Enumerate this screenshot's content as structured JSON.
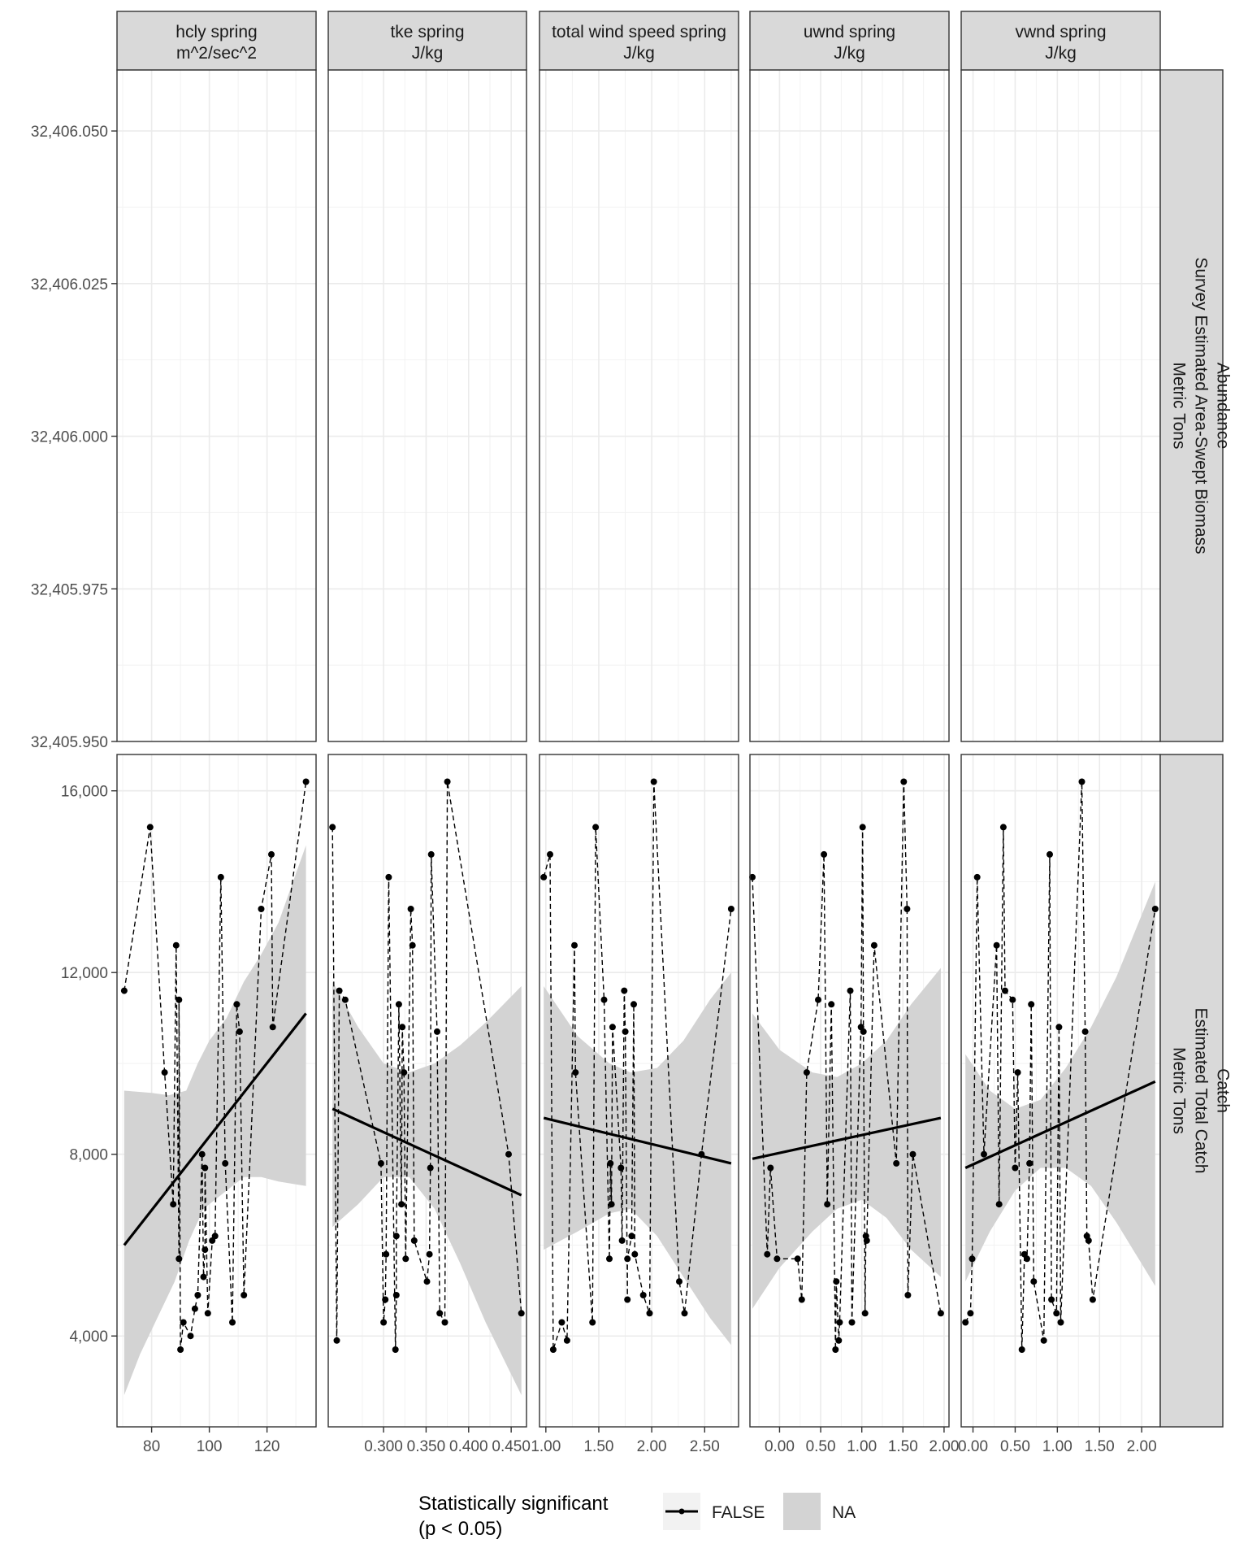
{
  "chart_data": {
    "type": "scatter",
    "facet_columns": [
      {
        "line1": "hcly spring",
        "line2": "m^2/sec^2",
        "xlim": [
          68,
          137
        ],
        "xticks": [
          80,
          100,
          120
        ],
        "xtick_labels": [
          "80",
          "100",
          "120"
        ]
      },
      {
        "line1": "tke spring",
        "line2": "J/kg",
        "xlim": [
          0.235,
          0.468
        ],
        "xticks": [
          0.3,
          0.35,
          0.4,
          0.45
        ],
        "xtick_labels": [
          "0.300",
          "0.350",
          "0.400",
          "0.450"
        ]
      },
      {
        "line1": "total wind speed spring",
        "line2": "J/kg",
        "xlim": [
          0.94,
          2.82
        ],
        "xticks": [
          1.0,
          1.5,
          2.0,
          2.5
        ],
        "xtick_labels": [
          "1.00",
          "1.50",
          "2.00",
          "2.50"
        ]
      },
      {
        "line1": "uwnd spring",
        "line2": "J/kg",
        "xlim": [
          -0.36,
          2.06
        ],
        "xticks": [
          0.0,
          0.5,
          1.0,
          1.5,
          2.0
        ],
        "xtick_labels": [
          "0.00",
          "0.50",
          "1.00",
          "1.50",
          "2.00"
        ]
      },
      {
        "line1": "vwnd spring",
        "line2": "J/kg",
        "xlim": [
          -0.14,
          2.22
        ],
        "xticks": [
          0.0,
          0.5,
          1.0,
          1.5,
          2.0
        ],
        "xtick_labels": [
          "0.00",
          "0.50",
          "1.00",
          "1.50",
          "2.00"
        ]
      }
    ],
    "facet_rows": [
      {
        "lines": [
          "Abundance",
          "Survey Estimated Area-Swept Biomass",
          "Metric Tons"
        ],
        "ylim": [
          32405.95,
          32406.06
        ],
        "yticks": [
          32405.95,
          32405.975,
          32406.0,
          32406.025,
          32406.05
        ],
        "ytick_labels": [
          "32,405.950",
          "32,405.975",
          "32,406.000",
          "32,406.025",
          "32,406.050"
        ]
      },
      {
        "lines": [
          "Catch",
          "Estimated Total Catch",
          "Metric Tons"
        ],
        "ylim": [
          2000,
          16800
        ],
        "yticks": [
          4000,
          8000,
          12000,
          16000
        ],
        "ytick_labels": [
          "4,000",
          "8,000",
          "12,000",
          "16,000"
        ]
      }
    ],
    "catch_panels": [
      {
        "points": [
          [
            70.5,
            11600
          ],
          [
            79.5,
            15200
          ],
          [
            84.5,
            9800
          ],
          [
            87.5,
            6900
          ],
          [
            88.5,
            12600
          ],
          [
            89.5,
            5700
          ],
          [
            89.5,
            11400
          ],
          [
            90,
            3700
          ],
          [
            91,
            4300
          ],
          [
            93.5,
            4000
          ],
          [
            95,
            4600
          ],
          [
            96,
            4900
          ],
          [
            97.5,
            8000
          ],
          [
            98,
            5300
          ],
          [
            98.5,
            5900
          ],
          [
            98.5,
            7700
          ],
          [
            99.5,
            4500
          ],
          [
            101,
            6100
          ],
          [
            102,
            6200
          ],
          [
            104,
            14100
          ],
          [
            105.5,
            7800
          ],
          [
            108,
            4300
          ],
          [
            109.5,
            11300
          ],
          [
            110.5,
            10700
          ],
          [
            112,
            4900
          ],
          [
            118,
            13400
          ],
          [
            121.5,
            14600
          ],
          [
            122,
            10800
          ],
          [
            133.5,
            16200
          ]
        ],
        "trend": [
          [
            70.5,
            6000
          ],
          [
            133.5,
            11100
          ]
        ],
        "ribbon_upper": [
          [
            70.5,
            9400
          ],
          [
            80,
            9350
          ],
          [
            86,
            9300
          ],
          [
            92,
            9400
          ],
          [
            96,
            10000
          ],
          [
            100,
            10500
          ],
          [
            106,
            11000
          ],
          [
            112,
            11800
          ],
          [
            118,
            12400
          ],
          [
            124,
            13100
          ],
          [
            129,
            14000
          ],
          [
            133.5,
            14800
          ]
        ],
        "ribbon_lower": [
          [
            70.5,
            2700
          ],
          [
            76,
            3600
          ],
          [
            82,
            4400
          ],
          [
            88,
            5200
          ],
          [
            93,
            6100
          ],
          [
            98,
            6800
          ],
          [
            104,
            7100
          ],
          [
            108,
            7300
          ],
          [
            112,
            7500
          ],
          [
            118,
            7500
          ],
          [
            124,
            7400
          ],
          [
            133.5,
            7300
          ]
        ]
      },
      {
        "points": [
          [
            0.24,
            15200
          ],
          [
            0.245,
            3900
          ],
          [
            0.248,
            11600
          ],
          [
            0.255,
            11400
          ],
          [
            0.297,
            7800
          ],
          [
            0.3,
            4300
          ],
          [
            0.302,
            4800
          ],
          [
            0.303,
            5800
          ],
          [
            0.306,
            14100
          ],
          [
            0.314,
            3700
          ],
          [
            0.315,
            4900
          ],
          [
            0.315,
            6200
          ],
          [
            0.318,
            11300
          ],
          [
            0.321,
            6900
          ],
          [
            0.322,
            10800
          ],
          [
            0.324,
            9800
          ],
          [
            0.326,
            5700
          ],
          [
            0.332,
            13400
          ],
          [
            0.334,
            12600
          ],
          [
            0.336,
            6100
          ],
          [
            0.351,
            5200
          ],
          [
            0.354,
            5800
          ],
          [
            0.355,
            7700
          ],
          [
            0.356,
            14600
          ],
          [
            0.363,
            10700
          ],
          [
            0.366,
            4500
          ],
          [
            0.372,
            4300
          ],
          [
            0.375,
            16200
          ],
          [
            0.447,
            8000
          ],
          [
            0.462,
            4500
          ]
        ],
        "trend": [
          [
            0.24,
            9000
          ],
          [
            0.462,
            7100
          ]
        ],
        "ribbon_upper": [
          [
            0.24,
            11800
          ],
          [
            0.27,
            10800
          ],
          [
            0.3,
            10000
          ],
          [
            0.33,
            9800
          ],
          [
            0.36,
            10000
          ],
          [
            0.39,
            10400
          ],
          [
            0.42,
            10900
          ],
          [
            0.462,
            11700
          ]
        ],
        "ribbon_lower": [
          [
            0.24,
            6400
          ],
          [
            0.27,
            6900
          ],
          [
            0.3,
            7500
          ],
          [
            0.33,
            7500
          ],
          [
            0.36,
            6800
          ],
          [
            0.39,
            5600
          ],
          [
            0.42,
            4300
          ],
          [
            0.462,
            2700
          ]
        ]
      },
      {
        "points": [
          [
            0.98,
            14100
          ],
          [
            1.04,
            14600
          ],
          [
            1.07,
            3700
          ],
          [
            1.15,
            4300
          ],
          [
            1.2,
            3900
          ],
          [
            1.27,
            12600
          ],
          [
            1.28,
            9800
          ],
          [
            1.44,
            4300
          ],
          [
            1.47,
            15200
          ],
          [
            1.55,
            11400
          ],
          [
            1.6,
            5700
          ],
          [
            1.61,
            7800
          ],
          [
            1.62,
            6900
          ],
          [
            1.63,
            10800
          ],
          [
            1.71,
            7700
          ],
          [
            1.72,
            6100
          ],
          [
            1.74,
            11600
          ],
          [
            1.75,
            10700
          ],
          [
            1.77,
            4800
          ],
          [
            1.77,
            5700
          ],
          [
            1.81,
            6200
          ],
          [
            1.83,
            11300
          ],
          [
            1.84,
            5800
          ],
          [
            1.92,
            4900
          ],
          [
            1.98,
            4500
          ],
          [
            2.02,
            16200
          ],
          [
            2.26,
            5200
          ],
          [
            2.31,
            4500
          ],
          [
            2.47,
            8000
          ],
          [
            2.75,
            13400
          ]
        ],
        "trend": [
          [
            0.98,
            8800
          ],
          [
            2.75,
            7800
          ]
        ],
        "ribbon_upper": [
          [
            0.98,
            11700
          ],
          [
            1.3,
            10600
          ],
          [
            1.6,
            10000
          ],
          [
            1.8,
            9800
          ],
          [
            2.05,
            9900
          ],
          [
            2.3,
            10500
          ],
          [
            2.55,
            11400
          ],
          [
            2.75,
            12000
          ]
        ],
        "ribbon_lower": [
          [
            0.98,
            5900
          ],
          [
            1.3,
            6300
          ],
          [
            1.6,
            6700
          ],
          [
            1.8,
            6800
          ],
          [
            2.05,
            6200
          ],
          [
            2.3,
            5300
          ],
          [
            2.55,
            4400
          ],
          [
            2.75,
            3800
          ]
        ]
      },
      {
        "points": [
          [
            -0.33,
            14100
          ],
          [
            -0.15,
            5800
          ],
          [
            -0.11,
            7700
          ],
          [
            -0.03,
            5700
          ],
          [
            0.22,
            5700
          ],
          [
            0.27,
            4800
          ],
          [
            0.33,
            9800
          ],
          [
            0.47,
            11400
          ],
          [
            0.54,
            14600
          ],
          [
            0.58,
            6900
          ],
          [
            0.63,
            11300
          ],
          [
            0.68,
            3700
          ],
          [
            0.69,
            5200
          ],
          [
            0.72,
            3900
          ],
          [
            0.73,
            4300
          ],
          [
            0.86,
            11600
          ],
          [
            0.88,
            4300
          ],
          [
            0.99,
            10800
          ],
          [
            1.01,
            15200
          ],
          [
            1.02,
            10700
          ],
          [
            1.04,
            4500
          ],
          [
            1.05,
            6200
          ],
          [
            1.06,
            6100
          ],
          [
            1.15,
            12600
          ],
          [
            1.42,
            7800
          ],
          [
            1.51,
            16200
          ],
          [
            1.55,
            13400
          ],
          [
            1.56,
            4900
          ],
          [
            1.62,
            8000
          ],
          [
            1.96,
            4500
          ]
        ],
        "trend": [
          [
            -0.33,
            7900
          ],
          [
            1.96,
            8800
          ]
        ],
        "ribbon_upper": [
          [
            -0.33,
            11100
          ],
          [
            0.0,
            10300
          ],
          [
            0.4,
            9800
          ],
          [
            0.7,
            9700
          ],
          [
            1.0,
            10000
          ],
          [
            1.3,
            10500
          ],
          [
            1.6,
            11300
          ],
          [
            1.96,
            12100
          ]
        ],
        "ribbon_lower": [
          [
            -0.33,
            4600
          ],
          [
            0.0,
            5500
          ],
          [
            0.4,
            6300
          ],
          [
            0.7,
            6800
          ],
          [
            1.0,
            7000
          ],
          [
            1.3,
            6600
          ],
          [
            1.6,
            5900
          ],
          [
            1.96,
            5300
          ]
        ]
      },
      {
        "points": [
          [
            -0.09,
            4300
          ],
          [
            -0.03,
            4500
          ],
          [
            -0.01,
            5700
          ],
          [
            0.05,
            14100
          ],
          [
            0.13,
            8000
          ],
          [
            0.28,
            12600
          ],
          [
            0.31,
            6900
          ],
          [
            0.36,
            15200
          ],
          [
            0.38,
            11600
          ],
          [
            0.47,
            11400
          ],
          [
            0.5,
            7700
          ],
          [
            0.53,
            9800
          ],
          [
            0.58,
            3700
          ],
          [
            0.61,
            5800
          ],
          [
            0.64,
            5700
          ],
          [
            0.67,
            7800
          ],
          [
            0.69,
            11300
          ],
          [
            0.72,
            5200
          ],
          [
            0.84,
            3900
          ],
          [
            0.91,
            14600
          ],
          [
            0.93,
            4800
          ],
          [
            0.99,
            4500
          ],
          [
            1.02,
            10800
          ],
          [
            1.04,
            4300
          ],
          [
            1.29,
            16200
          ],
          [
            1.33,
            10700
          ],
          [
            1.35,
            6200
          ],
          [
            1.37,
            6100
          ],
          [
            1.42,
            4800
          ],
          [
            2.16,
            13400
          ]
        ],
        "trend": [
          [
            -0.09,
            7700
          ],
          [
            2.16,
            9600
          ]
        ],
        "ribbon_upper": [
          [
            -0.09,
            10200
          ],
          [
            0.2,
            9400
          ],
          [
            0.5,
            9000
          ],
          [
            0.8,
            9200
          ],
          [
            1.1,
            9900
          ],
          [
            1.4,
            10800
          ],
          [
            1.7,
            11900
          ],
          [
            2.16,
            14000
          ]
        ],
        "ribbon_lower": [
          [
            -0.09,
            5200
          ],
          [
            0.2,
            6300
          ],
          [
            0.5,
            7200
          ],
          [
            0.8,
            7700
          ],
          [
            1.1,
            7700
          ],
          [
            1.4,
            7300
          ],
          [
            1.7,
            6500
          ],
          [
            2.16,
            5100
          ]
        ]
      }
    ],
    "legend": {
      "title_line1": "Statistically significant",
      "title_line2": "(p < 0.05)",
      "line_label": "FALSE",
      "ribbon_label": "NA",
      "position": "bottom"
    },
    "grid": true,
    "colors": {
      "strip": "#d9d9d9",
      "ribbon": "#d3d3d3",
      "line": "#000000",
      "grid": "#ebebeb"
    }
  }
}
